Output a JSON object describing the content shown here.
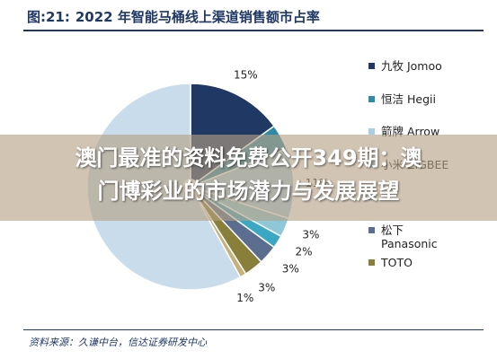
{
  "figure": {
    "label": "图:21:",
    "title": "2022 年智能马桶线上渠道销售额市占率"
  },
  "source": "资料来源：久谦中台，信达证券研发中心",
  "overlay": {
    "line1": "澳门最准的资料免费公开349期：澳",
    "line2": "门博彩业的市场潜力与发展展望"
  },
  "chart_data": {
    "type": "pie",
    "variant": "donut",
    "legend_position": "right",
    "slices": [
      {
        "name": "九牧 Jomoo",
        "value": 15,
        "label": "15%",
        "color": "#1f3864"
      },
      {
        "name": "恒洁 Hegii",
        "value": 4,
        "label": "",
        "color": "#2e8aa6"
      },
      {
        "name": "箭牌 Arrow",
        "value": 11,
        "label": "11%",
        "color": "#a9cde1"
      },
      {
        "name": "",
        "value": 3,
        "label": "3%",
        "color": "#8ec8d8"
      },
      {
        "name": "",
        "value": 2,
        "label": "2%",
        "color": "#3aa7c4"
      },
      {
        "name": "松下 Panasonic",
        "value": 3,
        "label": "3%",
        "color": "#5b6e8f"
      },
      {
        "name": "TOTO",
        "value": 3,
        "label": "3%",
        "color": "#8a7f3a"
      },
      {
        "name": "",
        "value": 1,
        "label": "1%",
        "color": "#c4b27a"
      },
      {
        "name": "",
        "value": 58,
        "label": "",
        "color": "#c9dcec"
      }
    ]
  },
  "legend": [
    {
      "label": "九牧 Jomoo",
      "color": "#1f3864"
    },
    {
      "label": "恒洁 Hegii",
      "color": "#2e8aa6"
    },
    {
      "label": "箭牌 Arrow",
      "color": "#a9cde1"
    },
    {
      "label": "小米 ZIGBEE",
      "color": "#8ec8d8"
    },
    {
      "label": "",
      "color": "#3aa7c4"
    },
    {
      "label": "松下",
      "color": "#5b6e8f",
      "sublabel": "Panasonic"
    },
    {
      "label": "TOTO",
      "color": "#8a7f3a"
    }
  ]
}
